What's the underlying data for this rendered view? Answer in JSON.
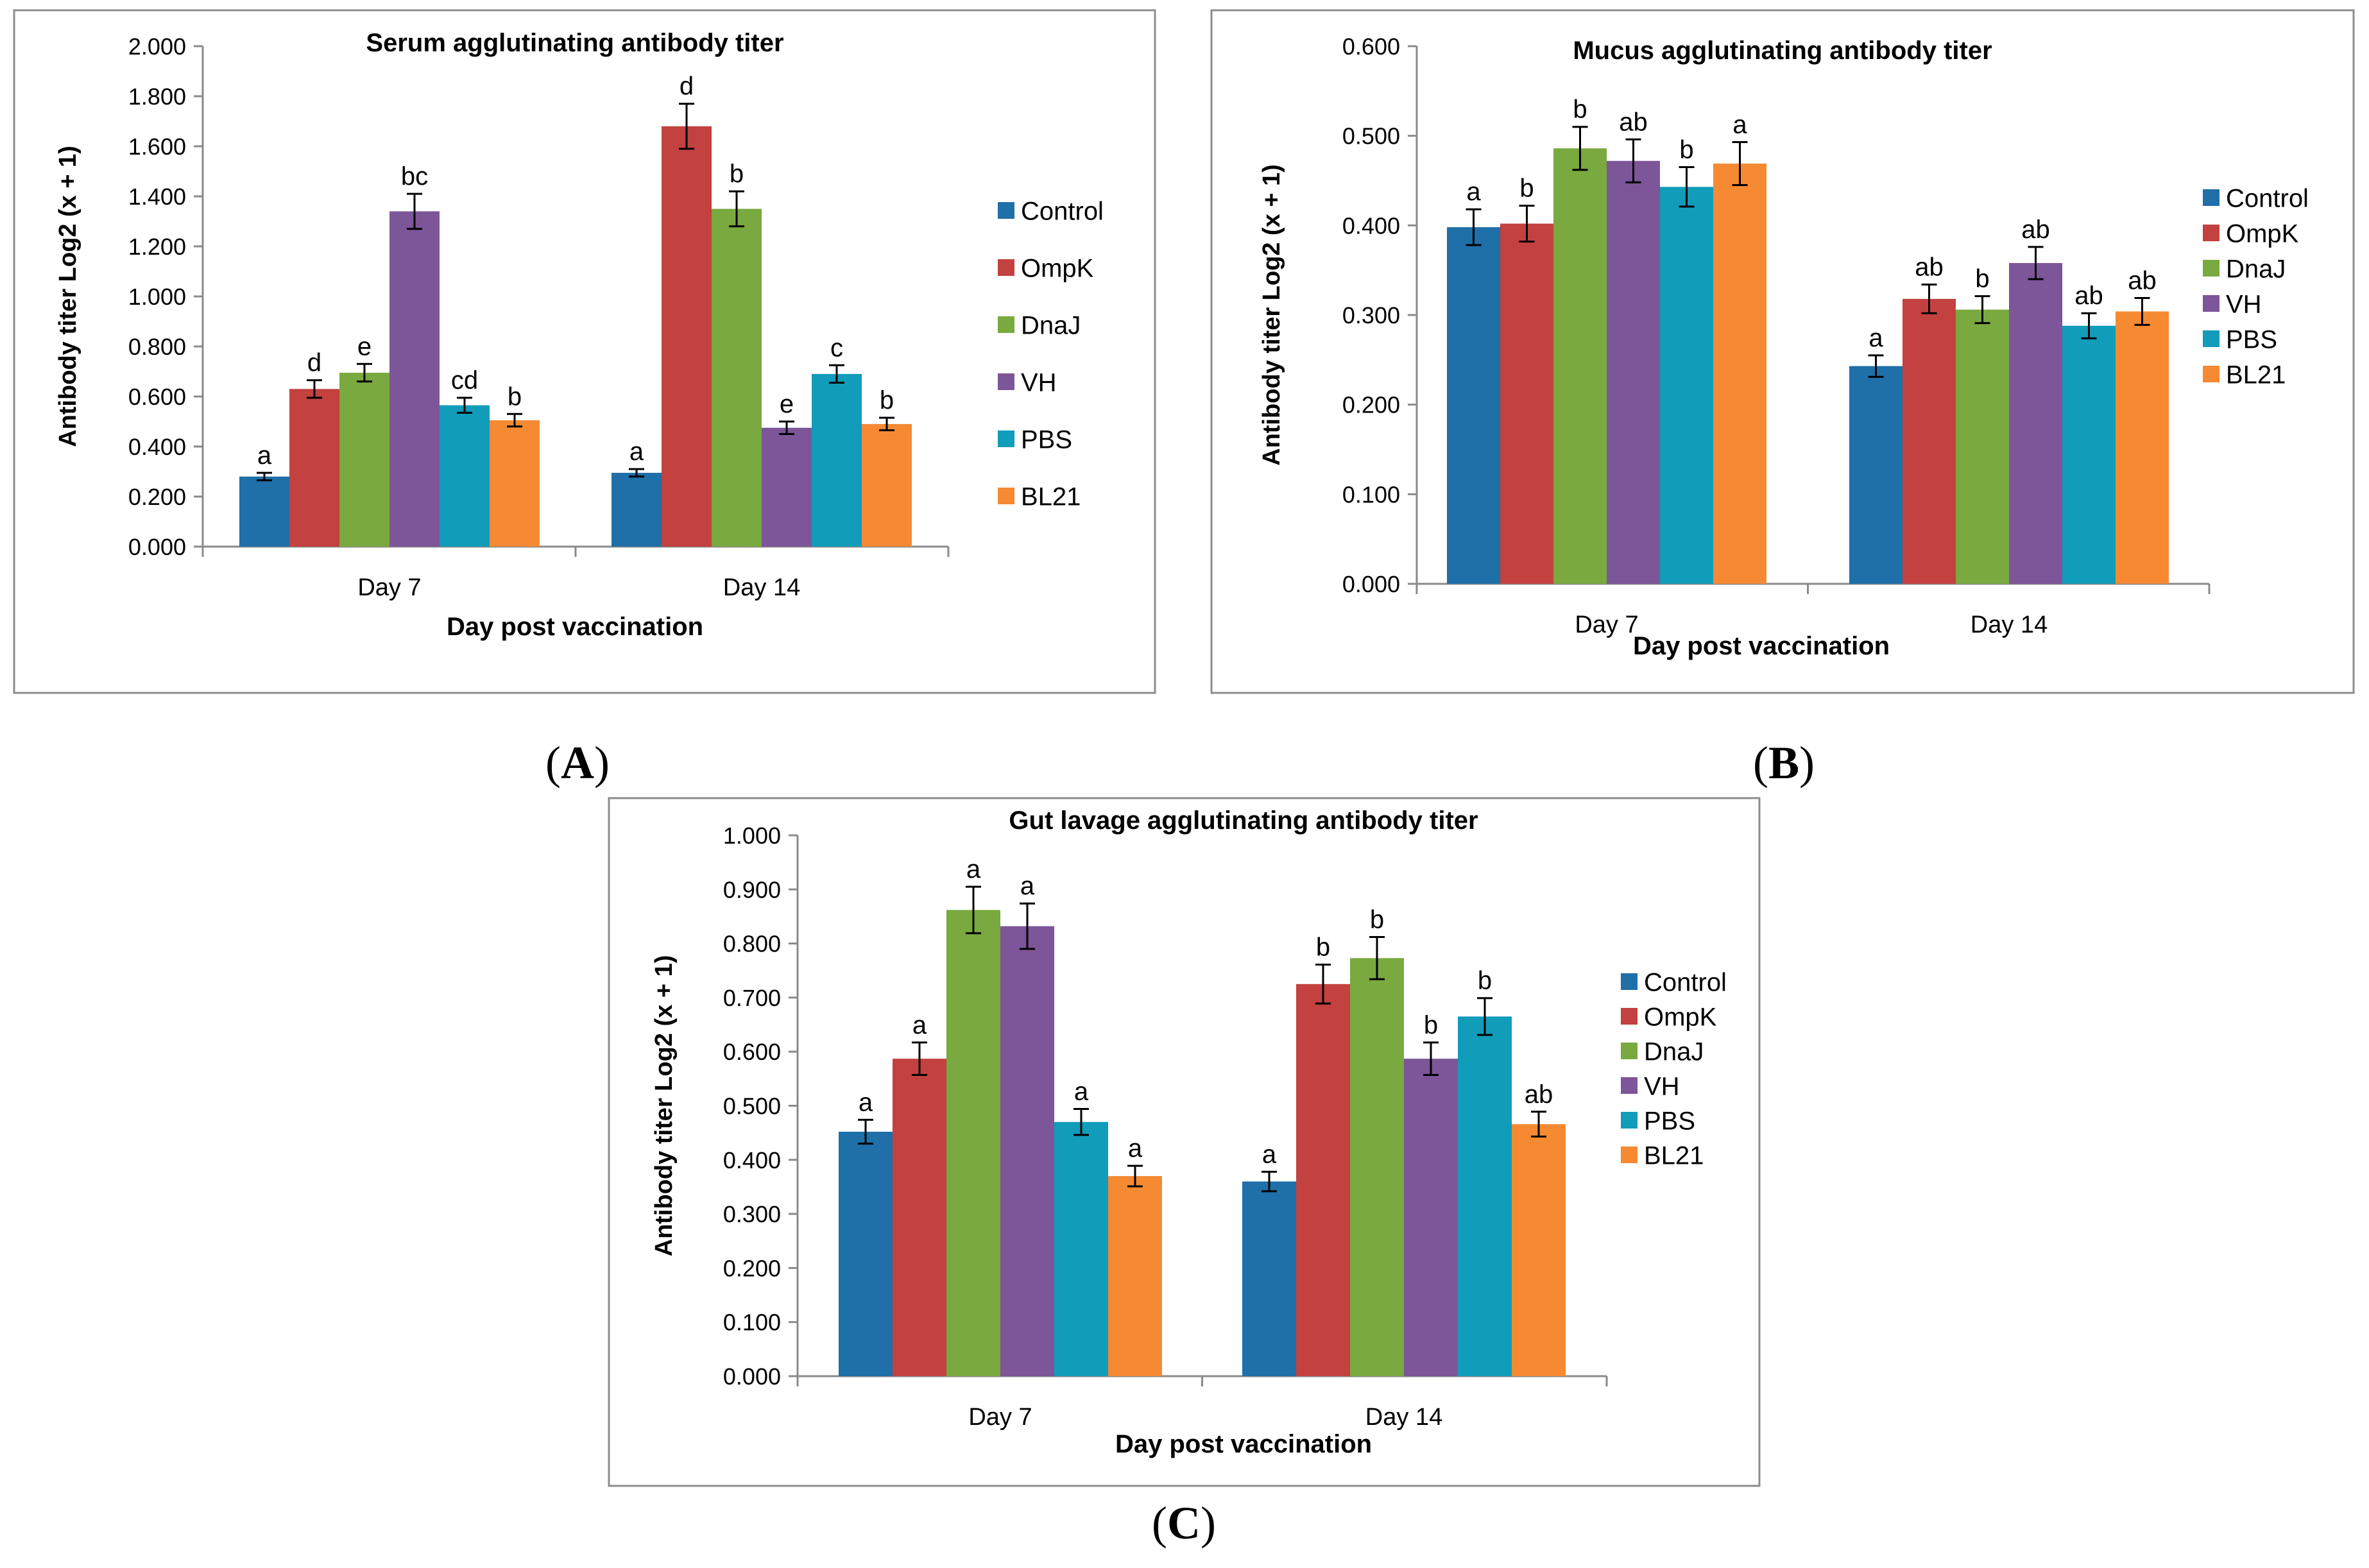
{
  "colors": {
    "Control": "#1F6FA8",
    "OmpK": "#C3413F",
    "DnaJ": "#79A93F",
    "VH": "#7D5599",
    "PBS": "#119CBA",
    "BL21": "#F58A33"
  },
  "panel_labels": [
    "A",
    "B",
    "C"
  ],
  "chart_data": [
    {
      "type": "bar",
      "title": "Serum agglutinating antibody titer",
      "xlabel": "Day post vaccination",
      "ylabel": "Antibody titer Log2 (x + 1)",
      "ylim": [
        0,
        2.0
      ],
      "yticks": [
        "0.000",
        "0.200",
        "0.400",
        "0.600",
        "0.800",
        "1.000",
        "1.200",
        "1.400",
        "1.600",
        "1.800",
        "2.000"
      ],
      "categories": [
        "Day 7",
        "Day 14"
      ],
      "legend": "right",
      "grid": false,
      "series": [
        {
          "name": "Control",
          "values": [
            0.28,
            0.295
          ],
          "errors": [
            0.015,
            0.015
          ],
          "labels": [
            "a",
            "a"
          ]
        },
        {
          "name": "OmpK",
          "values": [
            0.63,
            1.68
          ],
          "errors": [
            0.035,
            0.09
          ],
          "labels": [
            "d",
            "d"
          ]
        },
        {
          "name": "DnaJ",
          "values": [
            0.695,
            1.35
          ],
          "errors": [
            0.035,
            0.07
          ],
          "labels": [
            "e",
            "b"
          ]
        },
        {
          "name": "VH",
          "values": [
            1.34,
            0.475
          ],
          "errors": [
            0.07,
            0.025
          ],
          "labels": [
            "bc",
            "e"
          ]
        },
        {
          "name": "PBS",
          "values": [
            0.565,
            0.69
          ],
          "errors": [
            0.03,
            0.035
          ],
          "labels": [
            "cd",
            "c"
          ]
        },
        {
          "name": "BL21",
          "values": [
            0.505,
            0.49
          ],
          "errors": [
            0.025,
            0.025
          ],
          "labels": [
            "b",
            "b"
          ]
        }
      ]
    },
    {
      "type": "bar",
      "title": "Mucus agglutinating antibody titer",
      "xlabel": "Day post vaccination",
      "ylabel": "Antibody titer Log2 (x + 1)",
      "ylim": [
        0,
        0.6
      ],
      "yticks": [
        "0.000",
        "0.100",
        "0.200",
        "0.300",
        "0.400",
        "0.500",
        "0.600"
      ],
      "categories": [
        "Day 7",
        "Day 14"
      ],
      "legend": "right",
      "grid": false,
      "series": [
        {
          "name": "Control",
          "values": [
            0.398,
            0.243
          ],
          "errors": [
            0.02,
            0.012
          ],
          "labels": [
            "a",
            "a"
          ]
        },
        {
          "name": "OmpK",
          "values": [
            0.402,
            0.318
          ],
          "errors": [
            0.02,
            0.016
          ],
          "labels": [
            "b",
            "ab"
          ]
        },
        {
          "name": "DnaJ",
          "values": [
            0.486,
            0.306
          ],
          "errors": [
            0.024,
            0.015
          ],
          "labels": [
            "b",
            "b"
          ]
        },
        {
          "name": "VH",
          "values": [
            0.472,
            0.358
          ],
          "errors": [
            0.024,
            0.018
          ],
          "labels": [
            "ab",
            "ab"
          ]
        },
        {
          "name": "PBS",
          "values": [
            0.443,
            0.288
          ],
          "errors": [
            0.022,
            0.014
          ],
          "labels": [
            "b",
            "ab"
          ]
        },
        {
          "name": "BL21",
          "values": [
            0.469,
            0.304
          ],
          "errors": [
            0.024,
            0.015
          ],
          "labels": [
            "a",
            "ab"
          ]
        }
      ]
    },
    {
      "type": "bar",
      "title": "Gut lavage agglutinating antibody titer",
      "xlabel": "Day post vaccination",
      "ylabel": "Antibody titer Log2 (x + 1)",
      "ylim": [
        0,
        1.0
      ],
      "yticks": [
        "0.000",
        "0.100",
        "0.200",
        "0.300",
        "0.400",
        "0.500",
        "0.600",
        "0.700",
        "0.800",
        "0.900",
        "1.000"
      ],
      "categories": [
        "Day 7",
        "Day 14"
      ],
      "legend": "right",
      "grid": false,
      "series": [
        {
          "name": "Control",
          "values": [
            0.452,
            0.36
          ],
          "errors": [
            0.022,
            0.018
          ],
          "labels": [
            "a",
            "a"
          ]
        },
        {
          "name": "OmpK",
          "values": [
            0.587,
            0.725
          ],
          "errors": [
            0.03,
            0.036
          ],
          "labels": [
            "a",
            "b"
          ]
        },
        {
          "name": "DnaJ",
          "values": [
            0.862,
            0.773
          ],
          "errors": [
            0.043,
            0.039
          ],
          "labels": [
            "a",
            "b"
          ]
        },
        {
          "name": "VH",
          "values": [
            0.832,
            0.587
          ],
          "errors": [
            0.042,
            0.03
          ],
          "labels": [
            "a",
            "b"
          ]
        },
        {
          "name": "PBS",
          "values": [
            0.47,
            0.665
          ],
          "errors": [
            0.024,
            0.034
          ],
          "labels": [
            "a",
            "b"
          ]
        },
        {
          "name": "BL21",
          "values": [
            0.37,
            0.466
          ],
          "errors": [
            0.019,
            0.023
          ],
          "labels": [
            "a",
            "ab"
          ]
        }
      ]
    }
  ]
}
